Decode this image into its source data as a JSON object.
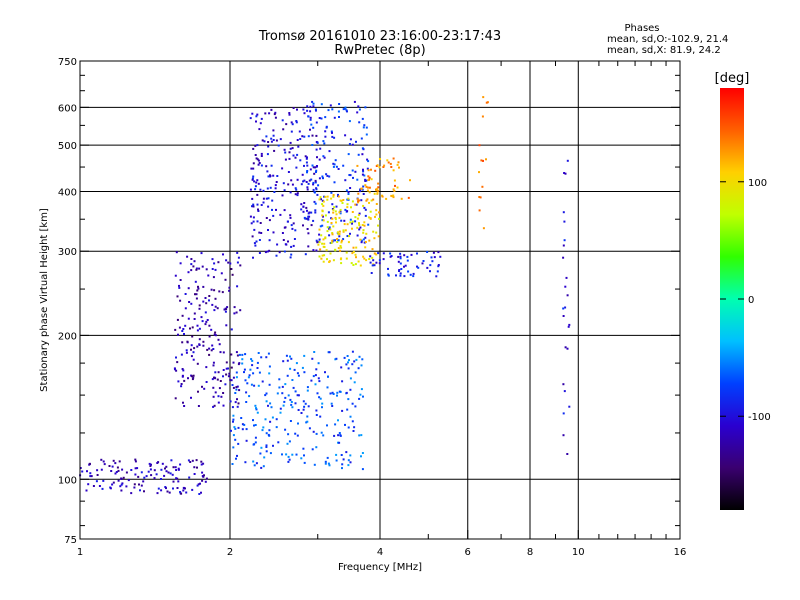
{
  "chart_data": {
    "type": "scatter",
    "title": "Tromsø 20161010 23:16:00-23:17:43",
    "subtitle": "RwPretec (8p)",
    "xlabel": "Frequency [MHz]",
    "ylabel": "Stationary phase Virtual Height [km]",
    "x_scale": "log",
    "y_scale": "log",
    "xlim": [
      1,
      16
    ],
    "ylim": [
      75,
      750
    ],
    "x_ticks": [
      1,
      2,
      4,
      6,
      8,
      10,
      16
    ],
    "x_tick_labels": [
      "1",
      "2",
      "4",
      "6",
      "8",
      "10",
      "16"
    ],
    "y_ticks": [
      75,
      100,
      200,
      300,
      400,
      500,
      600,
      750
    ],
    "y_tick_labels": [
      "75",
      "100",
      "200",
      "300",
      "400",
      "500",
      "600",
      "750"
    ],
    "grid": true,
    "stats": {
      "heading": "Phases",
      "line_o": "mean, sd,O:-102.9, 21.4",
      "line_x": "mean, sd,X: 81.9, 24.2"
    },
    "colorbar": {
      "label": "[deg]",
      "range": [
        -180,
        180
      ],
      "ticks": [
        100,
        0,
        -100
      ],
      "tick_labels": [
        "100",
        "0",
        "-100"
      ]
    },
    "traces": [
      {
        "name": "",
        "freq_range": [
          1.0,
          1.8
        ],
        "height_range": [
          93,
          110
        ],
        "phase": -115,
        "count": 140
      },
      {
        "name": "",
        "freq_range": [
          1.55,
          2.1
        ],
        "height_range": [
          140,
          300
        ],
        "phase": -120,
        "count": 220
      },
      {
        "name": "",
        "freq_range": [
          2.0,
          3.7
        ],
        "height_range": [
          105,
          185
        ],
        "phase": -70,
        "count": 280
      },
      {
        "name": "",
        "freq_range": [
          2.2,
          3.0
        ],
        "height_range": [
          290,
          600
        ],
        "phase": -105,
        "count": 240
      },
      {
        "name": "",
        "freq_range": [
          2.8,
          3.8
        ],
        "height_range": [
          310,
          620
        ],
        "phase": -85,
        "count": 200
      },
      {
        "name": "",
        "freq_range": [
          3.0,
          4.0
        ],
        "height_range": [
          280,
          400
        ],
        "phase": 100,
        "count": 160
      },
      {
        "name": "",
        "freq_range": [
          3.6,
          4.6
        ],
        "height_range": [
          380,
          470
        ],
        "phase": 130,
        "count": 60
      },
      {
        "name": "",
        "freq_range": [
          3.8,
          5.3
        ],
        "height_range": [
          265,
          300
        ],
        "phase": -95,
        "count": 60
      },
      {
        "name": "",
        "freq_range": [
          6.3,
          6.6
        ],
        "height_range": [
          330,
          640
        ],
        "phase": 140,
        "count": 14
      },
      {
        "name": "",
        "freq_range": [
          9.3,
          9.6
        ],
        "height_range": [
          110,
          500
        ],
        "phase": -100,
        "count": 24
      }
    ]
  }
}
